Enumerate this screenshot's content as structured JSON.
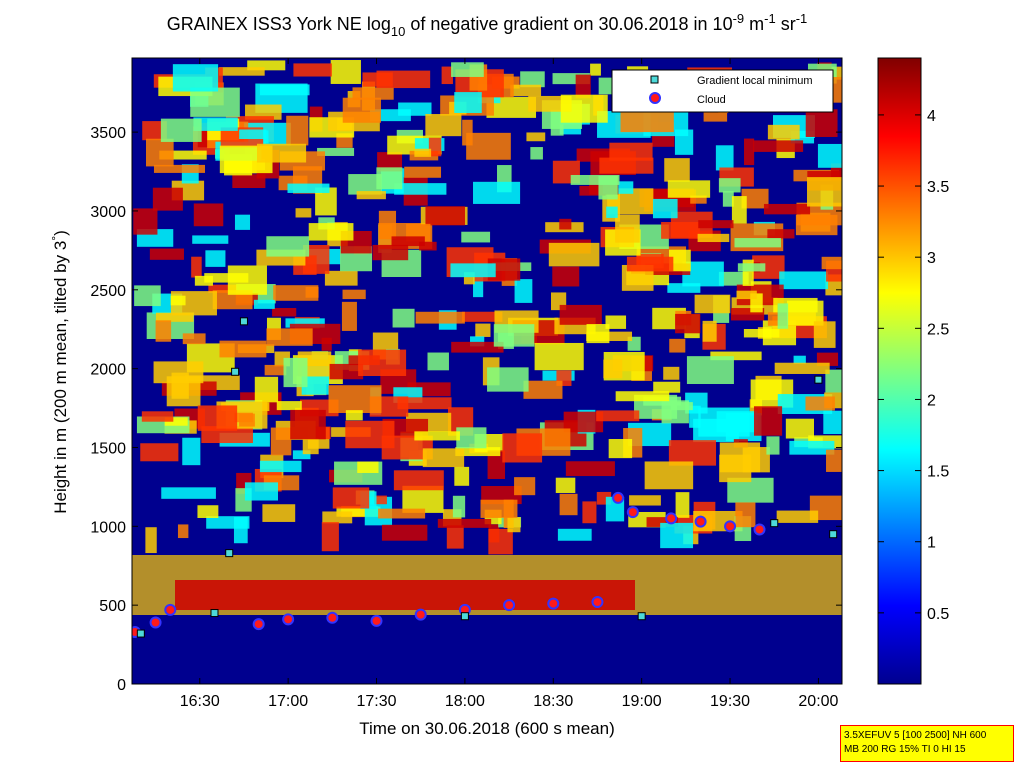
{
  "chart_data": {
    "type": "heatmap",
    "title": "GRAINEX ISS3 York NE log",
    "title_sub": "10",
    "title_rest": " of negative gradient on 30.06.2018 in 10",
    "title_sup1": "-9",
    "title_unit1": " m",
    "title_sup2": "-1",
    "title_unit2": " sr",
    "title_sup3": "-1",
    "xlabel": "Time on 30.06.2018 (600 s mean)",
    "ylabel_main": "Height in m (200 m mean, tilted by 3",
    "ylabel_deg": "°",
    "ylabel_end": ")",
    "xlim": [
      "16:07",
      "20:08"
    ],
    "ylim": [
      0,
      3970
    ],
    "x_ticks": [
      "16:30",
      "17:00",
      "17:30",
      "18:00",
      "18:30",
      "19:00",
      "19:30",
      "20:00"
    ],
    "y_ticks": [
      "0",
      "500",
      "1000",
      "1500",
      "2000",
      "2500",
      "3000",
      "3500"
    ],
    "colorbar": {
      "range": [
        0,
        4.4
      ],
      "ticks": [
        "0.5",
        "1",
        "1.5",
        "2",
        "2.5",
        "3",
        "3.5",
        "4"
      ],
      "colormap": "jet"
    },
    "legend": {
      "position": "top-right",
      "entries": [
        {
          "label": "Gradient local minimum",
          "marker": "square",
          "color": "#4dd9d9"
        },
        {
          "label": "Cloud",
          "marker": "circle",
          "color": "#ff1a1a",
          "edge": "#3333ff"
        }
      ]
    },
    "series": [
      {
        "name": "Cloud",
        "x": [
          "16:08",
          "16:15",
          "16:20",
          "16:50",
          "17:00",
          "17:15",
          "17:30",
          "17:45",
          "18:00",
          "18:15",
          "18:30",
          "18:45",
          "18:52",
          "18:57",
          "19:10",
          "19:20",
          "19:30",
          "19:40"
        ],
        "y": [
          330,
          390,
          470,
          380,
          410,
          420,
          400,
          440,
          470,
          500,
          510,
          520,
          1180,
          1090,
          1050,
          1030,
          1000,
          980
        ]
      },
      {
        "name": "Gradient local minimum",
        "x": [
          "16:10",
          "16:35",
          "16:40",
          "16:42",
          "16:45",
          "18:00",
          "19:00",
          "19:45",
          "20:00",
          "20:05"
        ],
        "y": [
          320,
          450,
          830,
          1980,
          2300,
          430,
          430,
          1020,
          1930,
          950
        ]
      }
    ]
  },
  "info_box": {
    "line1": "3.5XEFUV 5 [100 2500] NH 600",
    "line2": "MB 200 RG 15% TI 0 HI 15"
  }
}
